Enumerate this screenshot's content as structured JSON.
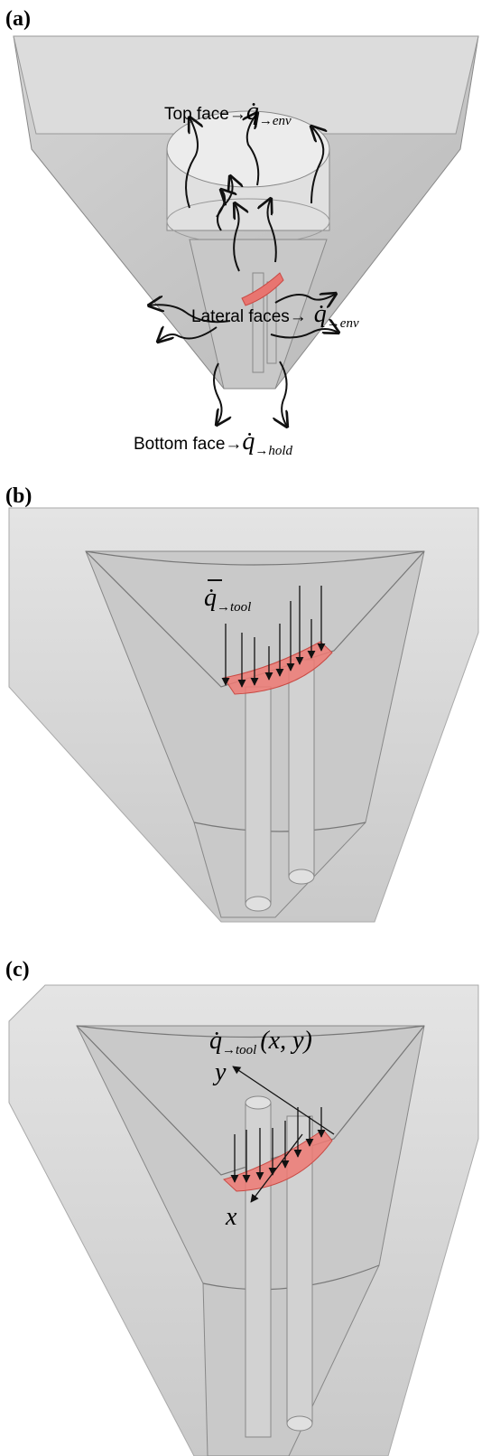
{
  "panels": [
    {
      "label": "(a)",
      "annotations": [
        {
          "text": "Top face→",
          "symbol": "q̇",
          "subscript": "→env"
        },
        {
          "text": "Lateral faces→",
          "symbol": "q̇",
          "subscript": "→env"
        },
        {
          "text": "Bottom face→",
          "symbol": "q̇",
          "subscript": "→hold"
        }
      ]
    },
    {
      "label": "(b)",
      "annotations": [
        {
          "symbol": "q̇",
          "subscript": "→tool"
        }
      ]
    },
    {
      "label": "(c)",
      "annotations": [
        {
          "symbol": "q̇",
          "subscript": "→tool",
          "arguments": "(x, y)"
        }
      ],
      "axes": [
        "y",
        "x"
      ]
    }
  ]
}
